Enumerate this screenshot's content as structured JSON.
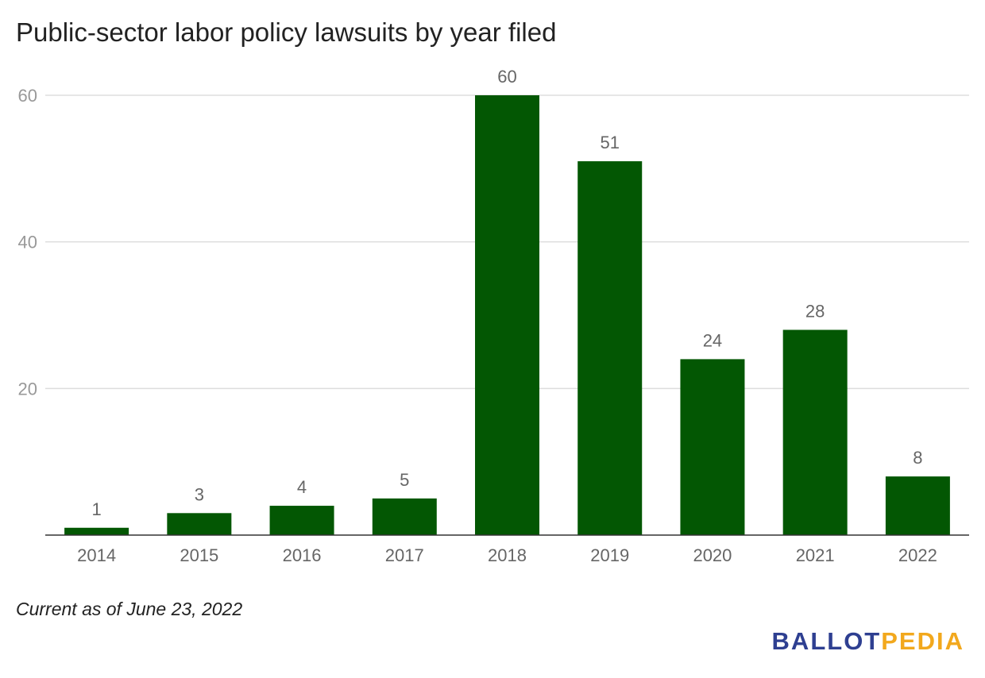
{
  "title": "Public-sector labor policy lawsuits by year filed",
  "note": "Current as of June 23, 2022",
  "logo": {
    "part1": "BALLOT",
    "part2": "PEDIA"
  },
  "colors": {
    "bar": "#035703",
    "grid": "#dddddd",
    "axis": "#333333",
    "tick_text": "#999999",
    "category_text": "#666666",
    "label_text": "#666666",
    "logo_blue": "#2e3f91",
    "logo_orange": "#f2a81d"
  },
  "chart_data": {
    "type": "bar",
    "title": "Public-sector labor policy lawsuits by year filed",
    "xlabel": "",
    "ylabel": "",
    "categories": [
      "2014",
      "2015",
      "2016",
      "2017",
      "2018",
      "2019",
      "2020",
      "2021",
      "2022"
    ],
    "values": [
      1,
      3,
      4,
      5,
      60,
      51,
      24,
      28,
      8
    ],
    "ylim": [
      0,
      60
    ],
    "yticks": [
      20,
      40,
      60
    ],
    "grid": true,
    "data_labels": true
  }
}
